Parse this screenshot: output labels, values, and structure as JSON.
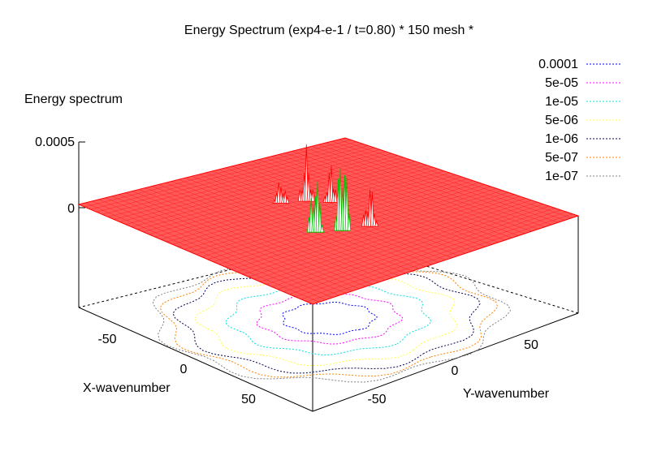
{
  "chart_data": {
    "type": "surface3d",
    "title": "Energy Spectrum (exp4-e-1 / t=0.80) * 150 mesh *",
    "zlabel": "Energy spectrum",
    "xlabel": "X-wavenumber",
    "ylabel": "Y-wavenumber",
    "zlim": [
      0,
      0.0005
    ],
    "z_ticks": [
      "0.0005",
      "0"
    ],
    "x_ticks": [
      "-50",
      "0",
      "50"
    ],
    "y_ticks": [
      "-50",
      "0",
      "50"
    ],
    "xlim": [
      -75,
      75
    ],
    "ylim": [
      -75,
      75
    ],
    "surface_color": "#ff0000",
    "peak_color": "#00c000",
    "contour_levels": [
      {
        "label": "0.0001",
        "color": "#0000ff"
      },
      {
        "label": "5e-05",
        "color": "#ff00ff"
      },
      {
        "label": "1e-05",
        "color": "#00e0e0"
      },
      {
        "label": "5e-06",
        "color": "#ffff40"
      },
      {
        "label": "1e-06",
        "color": "#000050"
      },
      {
        "label": "5e-07",
        "color": "#ff8000"
      },
      {
        "label": "1e-07",
        "color": "#808080"
      }
    ],
    "peaks": [
      {
        "x": -20,
        "y": -5,
        "height": 0.00024
      },
      {
        "x": -12,
        "y": -12,
        "height": 0.00018
      },
      {
        "x": -25,
        "y": 5,
        "height": 0.00012
      },
      {
        "x": 18,
        "y": 8,
        "height": 0.00045
      },
      {
        "x": 12,
        "y": 18,
        "height": 0.0003
      },
      {
        "x": 22,
        "y": -4,
        "height": 0.0002
      }
    ]
  }
}
